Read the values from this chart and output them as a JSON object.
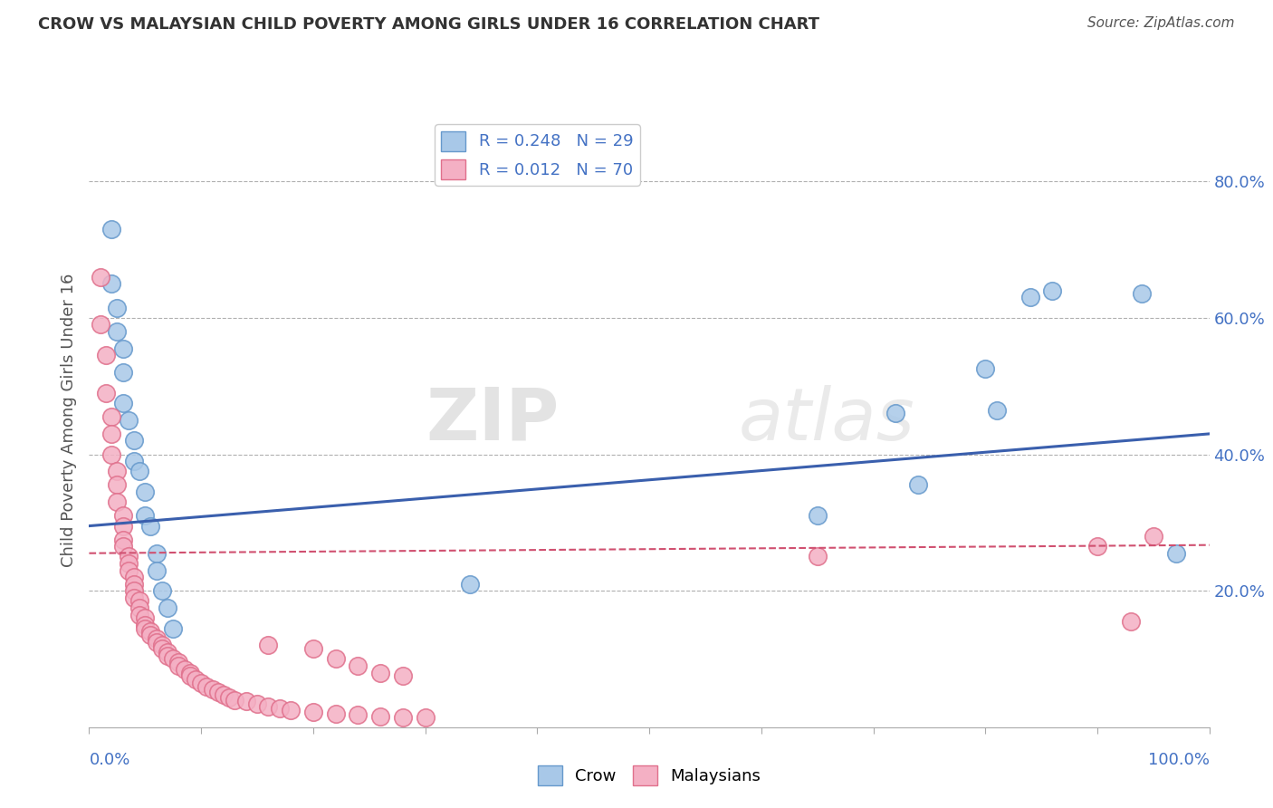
{
  "title": "CROW VS MALAYSIAN CHILD POVERTY AMONG GIRLS UNDER 16 CORRELATION CHART",
  "source": "Source: ZipAtlas.com",
  "ylabel": "Child Poverty Among Girls Under 16",
  "y_ticks": [
    0.2,
    0.4,
    0.6,
    0.8
  ],
  "xlim": [
    0.0,
    1.0
  ],
  "ylim": [
    0.0,
    0.9
  ],
  "crow_color": "#a8c8e8",
  "crow_edge_color": "#6699cc",
  "malaysian_color": "#f4b0c4",
  "malaysian_edge_color": "#e0708c",
  "line_crow_color": "#3a5fad",
  "line_malaysian_color": "#d05070",
  "crow_R": "0.248",
  "crow_N": "29",
  "malaysian_R": "0.012",
  "malaysian_N": "70",
  "legend_label_crow": "Crow",
  "legend_label_malaysian": "Malaysians",
  "watermark_zip": "ZIP",
  "watermark_atlas": "atlas",
  "crow_slope": 0.135,
  "crow_intercept": 0.295,
  "malaysian_slope": 0.012,
  "malaysian_intercept": 0.255,
  "background_color": "#ffffff",
  "grid_color": "#b0b0b0",
  "title_color": "#333333",
  "axis_label_color": "#555555",
  "tick_label_color": "#4472c4",
  "legend_text_color": "#4472c4",
  "marker_size": 14,
  "crow_points": [
    [
      0.02,
      0.73
    ],
    [
      0.02,
      0.65
    ],
    [
      0.025,
      0.615
    ],
    [
      0.025,
      0.58
    ],
    [
      0.03,
      0.555
    ],
    [
      0.03,
      0.52
    ],
    [
      0.03,
      0.475
    ],
    [
      0.035,
      0.45
    ],
    [
      0.04,
      0.42
    ],
    [
      0.04,
      0.39
    ],
    [
      0.045,
      0.375
    ],
    [
      0.05,
      0.345
    ],
    [
      0.05,
      0.31
    ],
    [
      0.055,
      0.295
    ],
    [
      0.06,
      0.255
    ],
    [
      0.06,
      0.23
    ],
    [
      0.065,
      0.2
    ],
    [
      0.07,
      0.175
    ],
    [
      0.075,
      0.145
    ],
    [
      0.34,
      0.21
    ],
    [
      0.65,
      0.31
    ],
    [
      0.72,
      0.46
    ],
    [
      0.74,
      0.355
    ],
    [
      0.8,
      0.525
    ],
    [
      0.81,
      0.465
    ],
    [
      0.84,
      0.63
    ],
    [
      0.86,
      0.64
    ],
    [
      0.94,
      0.635
    ],
    [
      0.97,
      0.255
    ]
  ],
  "malaysian_points": [
    [
      0.01,
      0.66
    ],
    [
      0.01,
      0.59
    ],
    [
      0.015,
      0.545
    ],
    [
      0.015,
      0.49
    ],
    [
      0.02,
      0.455
    ],
    [
      0.02,
      0.43
    ],
    [
      0.02,
      0.4
    ],
    [
      0.025,
      0.375
    ],
    [
      0.025,
      0.355
    ],
    [
      0.025,
      0.33
    ],
    [
      0.03,
      0.31
    ],
    [
      0.03,
      0.295
    ],
    [
      0.03,
      0.275
    ],
    [
      0.03,
      0.265
    ],
    [
      0.035,
      0.25
    ],
    [
      0.035,
      0.24
    ],
    [
      0.035,
      0.23
    ],
    [
      0.04,
      0.22
    ],
    [
      0.04,
      0.21
    ],
    [
      0.04,
      0.2
    ],
    [
      0.04,
      0.19
    ],
    [
      0.045,
      0.185
    ],
    [
      0.045,
      0.175
    ],
    [
      0.045,
      0.165
    ],
    [
      0.05,
      0.16
    ],
    [
      0.05,
      0.15
    ],
    [
      0.05,
      0.145
    ],
    [
      0.055,
      0.14
    ],
    [
      0.055,
      0.135
    ],
    [
      0.06,
      0.13
    ],
    [
      0.06,
      0.125
    ],
    [
      0.065,
      0.12
    ],
    [
      0.065,
      0.115
    ],
    [
      0.07,
      0.11
    ],
    [
      0.07,
      0.105
    ],
    [
      0.075,
      0.1
    ],
    [
      0.08,
      0.095
    ],
    [
      0.08,
      0.09
    ],
    [
      0.085,
      0.085
    ],
    [
      0.09,
      0.08
    ],
    [
      0.09,
      0.075
    ],
    [
      0.095,
      0.07
    ],
    [
      0.1,
      0.065
    ],
    [
      0.105,
      0.06
    ],
    [
      0.11,
      0.055
    ],
    [
      0.115,
      0.052
    ],
    [
      0.12,
      0.048
    ],
    [
      0.125,
      0.044
    ],
    [
      0.13,
      0.04
    ],
    [
      0.14,
      0.038
    ],
    [
      0.15,
      0.034
    ],
    [
      0.16,
      0.03
    ],
    [
      0.17,
      0.028
    ],
    [
      0.18,
      0.025
    ],
    [
      0.2,
      0.022
    ],
    [
      0.22,
      0.02
    ],
    [
      0.24,
      0.018
    ],
    [
      0.26,
      0.016
    ],
    [
      0.28,
      0.015
    ],
    [
      0.3,
      0.014
    ],
    [
      0.16,
      0.12
    ],
    [
      0.2,
      0.115
    ],
    [
      0.22,
      0.1
    ],
    [
      0.24,
      0.09
    ],
    [
      0.26,
      0.08
    ],
    [
      0.28,
      0.075
    ],
    [
      0.65,
      0.25
    ],
    [
      0.9,
      0.265
    ],
    [
      0.93,
      0.155
    ],
    [
      0.95,
      0.28
    ]
  ]
}
